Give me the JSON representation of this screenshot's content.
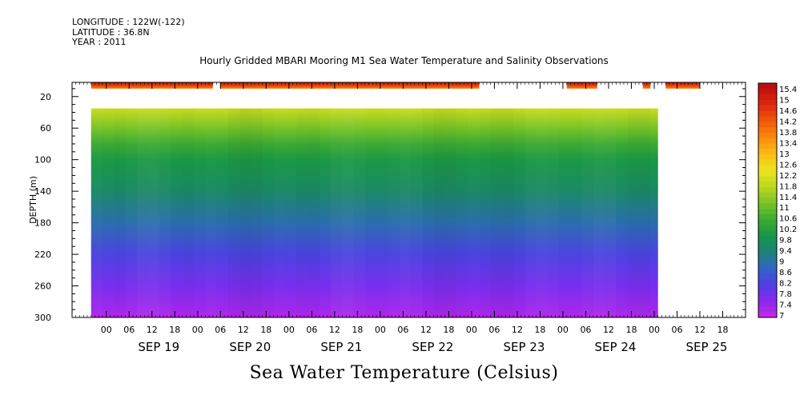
{
  "header": {
    "longitude": "LONGITUDE : 122W(-122)",
    "latitude": "LATITUDE : 36.8N",
    "year": "YEAR : 2011"
  },
  "chart_data": {
    "type": "heatmap",
    "title": "Hourly Gridded MBARI Mooring M1 Sea Water Temperature and Salinity Observations",
    "xlabel": "Sea Water Temperature (Celsius)",
    "ylabel": "DEPTH (m)",
    "y_ticks": [
      20,
      60,
      100,
      140,
      180,
      220,
      260,
      300
    ],
    "ylim": [
      300,
      2
    ],
    "x_hour_ticks": [
      "00",
      "06",
      "12",
      "18",
      "00",
      "06",
      "12",
      "18",
      "00",
      "06",
      "12",
      "18",
      "00",
      "06",
      "12",
      "18",
      "00",
      "06",
      "12",
      "18",
      "00",
      "06",
      "12",
      "18",
      "00",
      "06",
      "12",
      "18"
    ],
    "x_day_labels": [
      "SEP 19",
      "SEP 20",
      "SEP 21",
      "SEP 22",
      "SEP 23",
      "SEP 24",
      "SEP 25"
    ],
    "xlim_hours_from_sep19_00": [
      -15,
      162
    ],
    "colorbar": {
      "labels": [
        "15.4",
        "15",
        "14.6",
        "14.2",
        "13.8",
        "13.4",
        "13",
        "12.6",
        "12.2",
        "11.8",
        "11.4",
        "11",
        "10.6",
        "10.2",
        "9.8",
        "9.4",
        "9",
        "8.6",
        "8.2",
        "7.8",
        "7.4",
        "7"
      ],
      "min": 7,
      "max": 15.6
    },
    "surface_band": {
      "depth_range": [
        2,
        10
      ],
      "segments_hours": [
        [
          -10,
          22
        ],
        [
          24,
          92
        ],
        [
          115,
          123
        ],
        [
          135,
          137
        ],
        [
          141,
          150
        ]
      ],
      "temp_range": [
        13.4,
        15.4
      ]
    },
    "profile": {
      "depths": [
        35,
        60,
        80,
        100,
        140,
        180,
        220,
        260,
        290,
        300
      ],
      "temps": [
        12.0,
        11.2,
        10.6,
        10.1,
        9.6,
        9.0,
        8.3,
        7.8,
        7.4,
        7.2
      ],
      "time_range_hours": [
        -10,
        139
      ]
    }
  }
}
